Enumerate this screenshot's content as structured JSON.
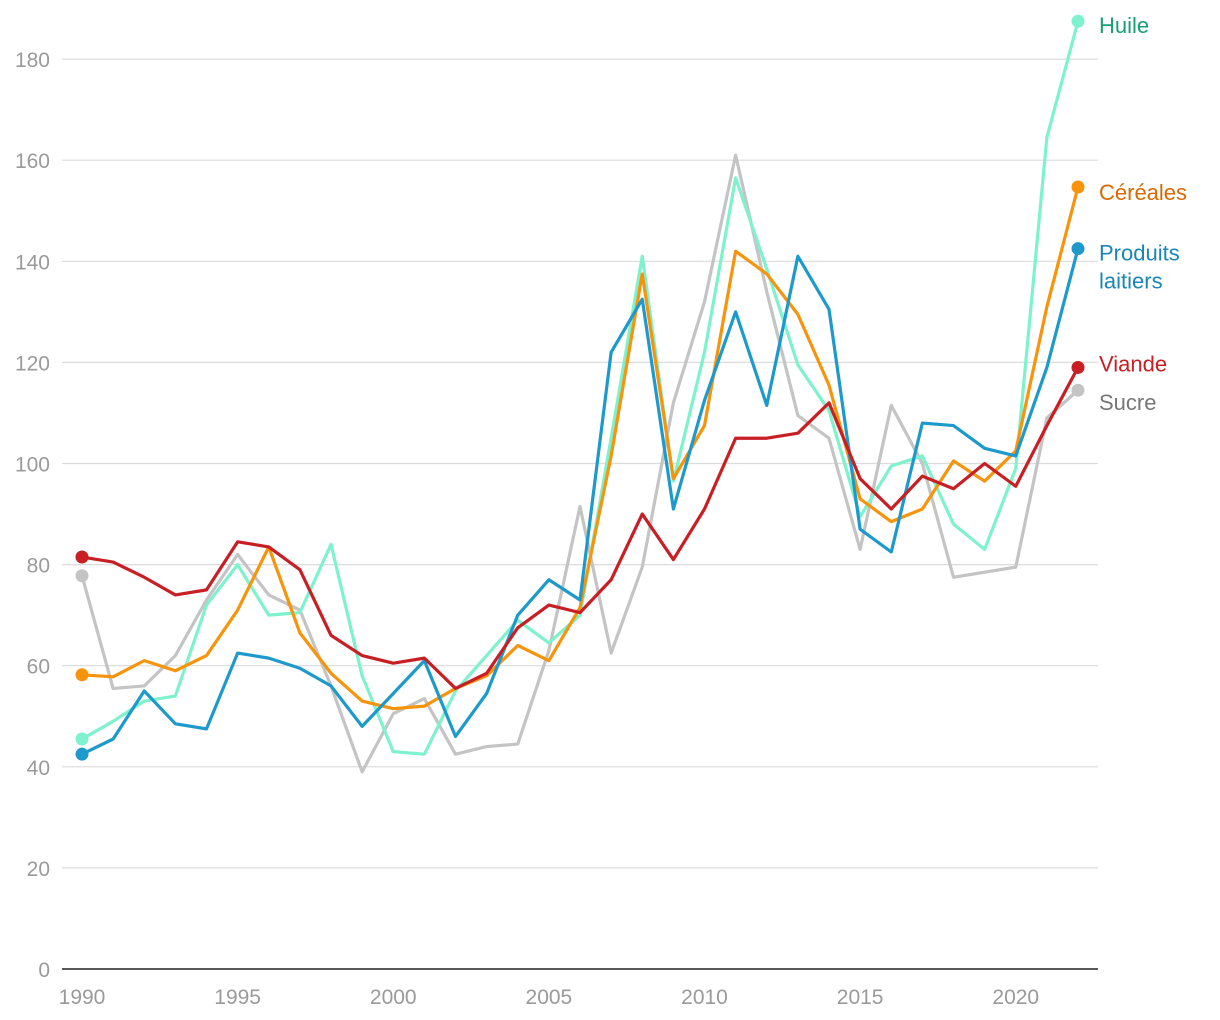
{
  "chart_data": {
    "type": "line",
    "title": "",
    "xlabel": "",
    "ylabel": "",
    "xlim": [
      1990,
      2022
    ],
    "ylim": [
      0,
      190
    ],
    "grid": true,
    "legend": "direct labels at right end of lines",
    "x_ticks": [
      1990,
      1995,
      2000,
      2005,
      2010,
      2015,
      2020
    ],
    "x_tick_labels": [
      "1990",
      "1995",
      "2000",
      "2005",
      "2010",
      "2015",
      "2020"
    ],
    "y_ticks": [
      0,
      20,
      40,
      60,
      80,
      100,
      120,
      140,
      160,
      180
    ],
    "y_tick_labels": [
      "0",
      "20",
      "40",
      "60",
      "80",
      "100",
      "120",
      "140",
      "160",
      "180"
    ],
    "x": [
      1990,
      1991,
      1992,
      1993,
      1994,
      1995,
      1996,
      1997,
      1998,
      1999,
      2000,
      2001,
      2002,
      2003,
      2004,
      2005,
      2006,
      2007,
      2008,
      2009,
      2010,
      2011,
      2012,
      2013,
      2014,
      2015,
      2016,
      2017,
      2018,
      2019,
      2020,
      2021,
      2022
    ],
    "series": [
      {
        "name": "Sucre",
        "label_lines": [
          "Sucre"
        ],
        "color": "#c4c4c4",
        "label_color": "#777777",
        "values": [
          77.8,
          55.5,
          56.0,
          62.0,
          73.0,
          82.0,
          74.0,
          71.0,
          56.0,
          39.0,
          50.5,
          53.5,
          42.5,
          44.0,
          44.5,
          63.0,
          91.5,
          62.5,
          79.5,
          112.0,
          132.0,
          161.0,
          134.0,
          109.5,
          105.0,
          83.0,
          111.5,
          100.0,
          77.5,
          78.5,
          79.5,
          109.0,
          114.5
        ]
      },
      {
        "name": "Huile",
        "label_lines": [
          "Huile"
        ],
        "color": "#7ef2cd",
        "label_color": "#1a9e74",
        "values": [
          45.5,
          49.0,
          53.0,
          54.0,
          72.0,
          80.0,
          70.0,
          70.5,
          84.0,
          58.0,
          43.0,
          42.5,
          55.0,
          62.0,
          69.0,
          64.5,
          70.0,
          105.0,
          141.0,
          96.5,
          122.0,
          156.5,
          138.5,
          119.5,
          110.5,
          89.5,
          99.5,
          101.5,
          88.0,
          83.0,
          99.0,
          164.5,
          187.5
        ]
      },
      {
        "name": "Céréales",
        "label_lines": [
          "Céréales"
        ],
        "color": "#f7940c",
        "label_color": "#d86a00",
        "values": [
          58.2,
          57.8,
          61.0,
          59.0,
          62.0,
          71.0,
          83.5,
          66.5,
          58.5,
          53.0,
          51.5,
          52.0,
          55.5,
          58.0,
          64.0,
          61.0,
          71.5,
          101.5,
          137.5,
          97.0,
          107.5,
          142.0,
          137.5,
          129.5,
          115.5,
          93.0,
          88.5,
          91.0,
          100.5,
          96.5,
          102.5,
          131.0,
          154.7
        ]
      },
      {
        "name": "Produits laitiers",
        "label_lines": [
          "Produits",
          "laitiers"
        ],
        "color": "#1d9acb",
        "label_color": "#1a86b8",
        "values": [
          42.5,
          45.5,
          55.0,
          48.5,
          47.5,
          62.5,
          61.5,
          59.5,
          56.0,
          48.0,
          54.5,
          61.0,
          46.0,
          54.5,
          70.0,
          77.0,
          73.0,
          122.0,
          132.5,
          91.0,
          112.5,
          130.0,
          111.5,
          141.0,
          130.5,
          87.0,
          82.5,
          108.0,
          107.5,
          103.0,
          101.5,
          119.0,
          142.5
        ]
      },
      {
        "name": "Viande",
        "label_lines": [
          "Viande"
        ],
        "color": "#c71f24",
        "label_color": "#c71f24",
        "values": [
          81.5,
          80.5,
          77.5,
          74.0,
          75.0,
          84.5,
          83.5,
          79.0,
          66.0,
          62.0,
          60.5,
          61.5,
          55.5,
          58.5,
          67.5,
          72.0,
          70.5,
          77.0,
          90.0,
          81.0,
          91.0,
          105.0,
          105.0,
          106.0,
          112.0,
          97.0,
          91.0,
          97.5,
          95.0,
          100.0,
          95.5,
          107.5,
          119.0
        ]
      }
    ]
  }
}
